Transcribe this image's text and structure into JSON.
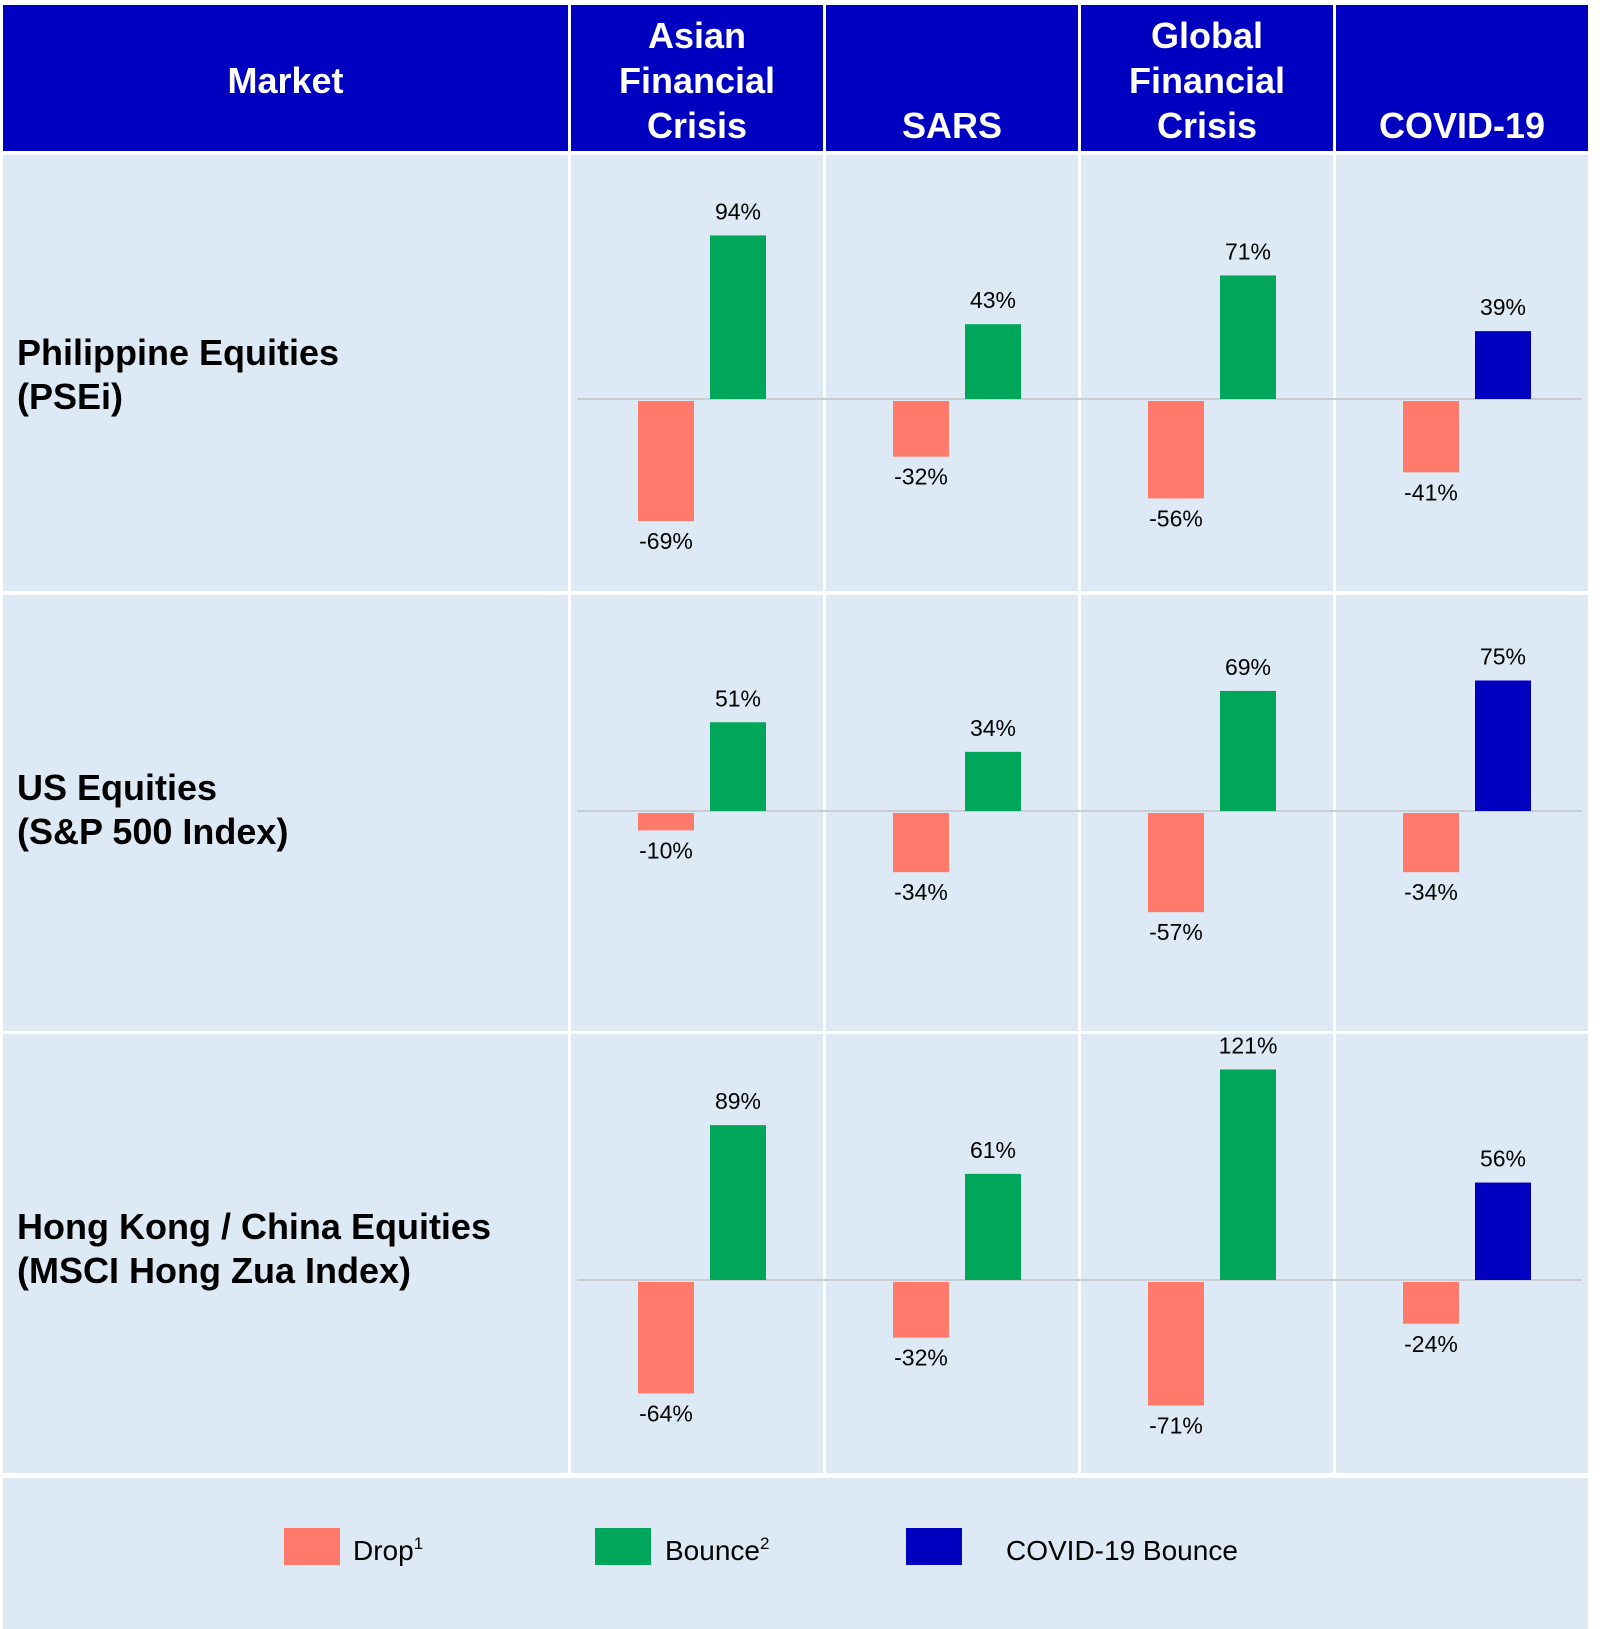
{
  "header": {
    "market_label": "Market",
    "events": [
      [
        "Asian",
        "Financial",
        "Crisis"
      ],
      [
        "SARS"
      ],
      [
        "Global",
        "Financial",
        "Crisis"
      ],
      [
        "COVID-19"
      ]
    ]
  },
  "rows": [
    [
      "Philippine Equities",
      "(PSEi)"
    ],
    [
      "US Equities",
      "(S&P 500 Index)"
    ],
    [
      "Hong Kong / China Equities",
      "(MSCI Hong Zua Index)"
    ]
  ],
  "colors": {
    "header": "#0000c0",
    "cell": "#dde9f5",
    "drop": "#ff7a6b",
    "bounce": "#00a65a",
    "covid_bounce": "#0000c0"
  },
  "chart_data": {
    "type": "bar",
    "unit": "%",
    "events": [
      "Asian Financial Crisis",
      "SARS",
      "Global Financial Crisis",
      "COVID-19"
    ],
    "markets": [
      "Philippine Equities (PSEi)",
      "US Equities (S&P 500 Index)",
      "Hong Kong / China Equities (MSCI Hong Zua Index)"
    ],
    "drop": [
      [
        -69,
        -32,
        -56,
        -41
      ],
      [
        -10,
        -34,
        -57,
        -34
      ],
      [
        -64,
        -32,
        -71,
        -24
      ]
    ],
    "bounce": [
      [
        94,
        43,
        71,
        39
      ],
      [
        51,
        34,
        69,
        75
      ],
      [
        89,
        61,
        121,
        56
      ]
    ],
    "drop_labels": [
      [
        "-69%",
        "-32%",
        "-56%",
        "-41%"
      ],
      [
        "-10%",
        "-34%",
        "-57%",
        "-34%"
      ],
      [
        "-64%",
        "-32%",
        "-71%",
        "-24%"
      ]
    ],
    "bounce_labels": [
      [
        "94%",
        "43%",
        "71%",
        "39%"
      ],
      [
        "51%",
        "34%",
        "69%",
        "75%"
      ],
      [
        "89%",
        "61%",
        "121%",
        "56%"
      ]
    ],
    "legend": [
      {
        "label": "Drop",
        "sup": "1",
        "color": "#ff7a6b"
      },
      {
        "label": "Bounce",
        "sup": "2",
        "color": "#00a65a"
      },
      {
        "label": "COVID-19 Bounce",
        "sup": "",
        "color": "#0000c0"
      }
    ]
  }
}
